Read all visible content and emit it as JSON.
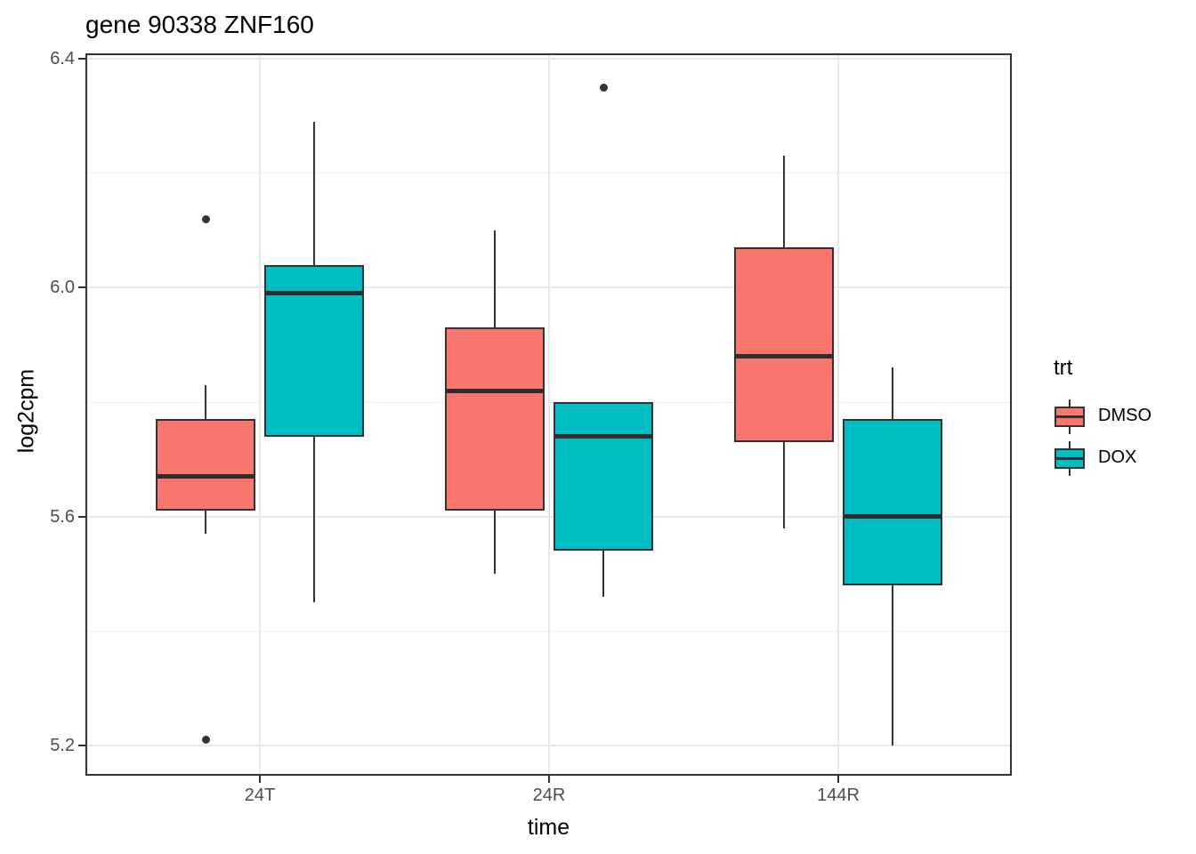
{
  "chart_data": {
    "type": "boxplot",
    "title": "gene 90338 ZNF160",
    "xlabel": "time",
    "ylabel": "log2cpm",
    "categories": [
      "24T",
      "24R",
      "144R"
    ],
    "y_ticks": [
      {
        "value": 6.4,
        "label": "6.4"
      },
      {
        "value": 6.0,
        "label": "6.0"
      },
      {
        "value": 5.6,
        "label": "5.6"
      },
      {
        "value": 5.2,
        "label": "5.2"
      }
    ],
    "y_minor_ticks": [
      6.2,
      5.8,
      5.4
    ],
    "ylim": [
      5.15,
      6.41
    ],
    "grid": true,
    "legend": {
      "title": "trt",
      "position": "right",
      "entries": [
        {
          "label": "DMSO",
          "color": "#F8766D"
        },
        {
          "label": "DOX",
          "color": "#00BFC4"
        }
      ]
    },
    "series": [
      {
        "name": "DMSO",
        "color": "#F8766D",
        "boxes": [
          {
            "category": "24T",
            "whisker_low": 5.57,
            "q1": 5.61,
            "median": 5.67,
            "q3": 5.77,
            "whisker_high": 5.83,
            "outliers": [
              6.12,
              5.21
            ]
          },
          {
            "category": "24R",
            "whisker_low": 5.5,
            "q1": 5.61,
            "median": 5.82,
            "q3": 5.93,
            "whisker_high": 6.1,
            "outliers": []
          },
          {
            "category": "144R",
            "whisker_low": 5.58,
            "q1": 5.73,
            "median": 5.88,
            "q3": 6.07,
            "whisker_high": 6.23,
            "outliers": []
          }
        ]
      },
      {
        "name": "DOX",
        "color": "#00BFC4",
        "boxes": [
          {
            "category": "24T",
            "whisker_low": 5.45,
            "q1": 5.74,
            "median": 5.99,
            "q3": 6.04,
            "whisker_high": 6.29,
            "outliers": []
          },
          {
            "category": "24R",
            "whisker_low": 5.46,
            "q1": 5.54,
            "median": 5.74,
            "q3": 5.8,
            "whisker_high": 5.8,
            "outliers": [
              6.35
            ]
          },
          {
            "category": "144R",
            "whisker_low": 5.2,
            "q1": 5.48,
            "median": 5.6,
            "q3": 5.77,
            "whisker_high": 5.86,
            "outliers": []
          }
        ]
      }
    ],
    "style": {
      "box_border": "#333333",
      "median_color": "#2D2D2D",
      "outlier_color": "#333333",
      "grid_major": "#E8E8E8",
      "grid_minor": "#F1F1F1",
      "panel_border": "#333333",
      "tick_color": "#333333",
      "tick_label_color": "#4D4D4D"
    }
  }
}
